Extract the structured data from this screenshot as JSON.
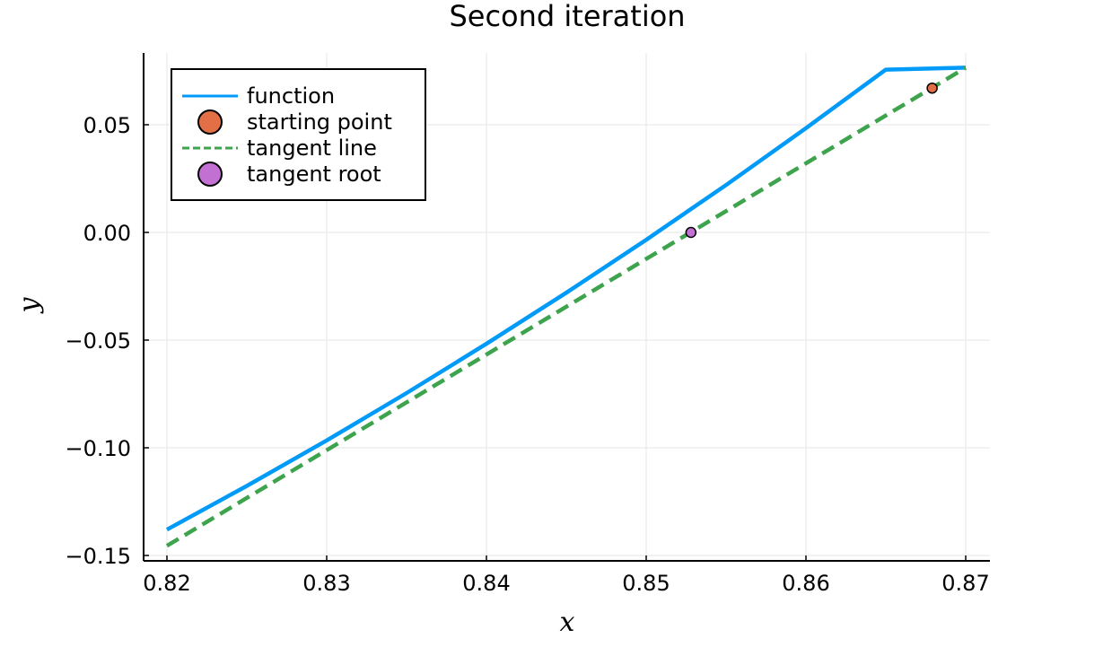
{
  "chart_data": {
    "type": "line",
    "title": "Second iteration",
    "xlabel": "x",
    "ylabel": "y",
    "xlim": [
      0.82,
      0.87
    ],
    "ylim": [
      -0.15,
      0.0775
    ],
    "grid": true,
    "legend_position": "top-left",
    "x_ticks": [
      0.82,
      0.83,
      0.84,
      0.85,
      0.86,
      0.87
    ],
    "x_tick_labels": [
      "0.82",
      "0.83",
      "0.84",
      "0.85",
      "0.86",
      "0.87"
    ],
    "y_ticks": [
      0.05,
      0.0,
      -0.05,
      -0.1,
      -0.15
    ],
    "y_tick_labels": [
      "0.05",
      "0.00",
      "−0.05",
      "−0.10",
      "−0.15"
    ],
    "series": [
      {
        "name": "function",
        "style": "line",
        "color": "#009af9",
        "x": [
          0.82,
          0.825,
          0.83,
          0.835,
          0.84,
          0.845,
          0.85,
          0.855,
          0.86,
          0.865,
          0.87
        ],
        "y": [
          -0.138,
          -0.1177,
          -0.0966,
          -0.0746,
          -0.0517,
          -0.028,
          -0.0034,
          0.022,
          0.0484,
          0.0756,
          0.0765
        ]
      },
      {
        "name": "starting point",
        "style": "marker",
        "color": "#e26f46",
        "x": [
          0.8679
        ],
        "y": [
          0.067
        ]
      },
      {
        "name": "tangent line",
        "style": "dashed",
        "color": "#3da44d",
        "x": [
          0.82,
          0.87
        ],
        "y": [
          -0.1455,
          0.0765
        ]
      },
      {
        "name": "tangent root",
        "style": "marker",
        "color": "#c271d2",
        "x": [
          0.8528
        ],
        "y": [
          0.0
        ]
      }
    ]
  }
}
